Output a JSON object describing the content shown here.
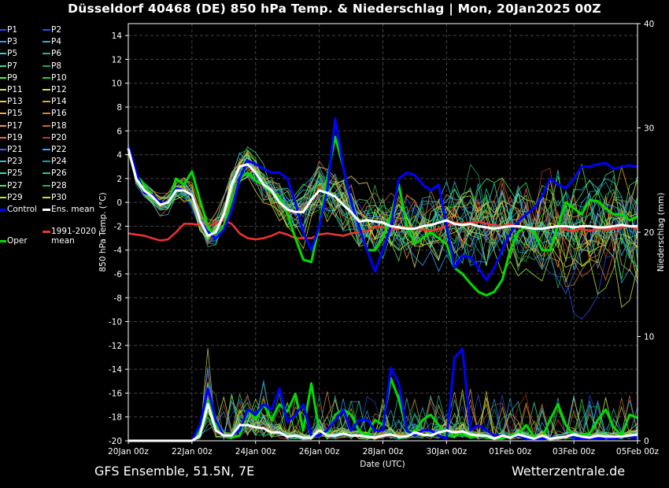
{
  "title": "Düsseldorf 40468 (DE)  850 hPa Temp. & Niederschlag | Mon, 20Jan2025 00Z",
  "footer_left": "GFS Ensemble, 51.5N, 7E",
  "footer_right": "Wetterzentrale.de",
  "legend": [
    {
      "label": "P1",
      "color": "#3344ff"
    },
    {
      "label": "P2",
      "color": "#2255ee"
    },
    {
      "label": "P3",
      "color": "#3399ff"
    },
    {
      "label": "P4",
      "color": "#33aadd"
    },
    {
      "label": "P5",
      "color": "#33cccc"
    },
    {
      "label": "P6",
      "color": "#22bb88"
    },
    {
      "label": "P7",
      "color": "#33dd99"
    },
    {
      "label": "P8",
      "color": "#22aa55"
    },
    {
      "label": "P9",
      "color": "#55ee44"
    },
    {
      "label": "P10",
      "color": "#33cc33"
    },
    {
      "label": "P11",
      "color": "#ccee44"
    },
    {
      "label": "P12",
      "color": "#dddd66"
    },
    {
      "label": "P13",
      "color": "#eecc33"
    },
    {
      "label": "P14",
      "color": "#ddaa22"
    },
    {
      "label": "P15",
      "color": "#eeaa55"
    },
    {
      "label": "P16",
      "color": "#cc8833"
    },
    {
      "label": "P17",
      "color": "#ee9944"
    },
    {
      "label": "P18",
      "color": "#cc6633"
    },
    {
      "label": "P19",
      "color": "#ee6655"
    },
    {
      "label": "P20",
      "color": "#bb3333"
    },
    {
      "label": "P21",
      "color": "#3366ff"
    },
    {
      "label": "P22",
      "color": "#33aaff"
    },
    {
      "label": "P23",
      "color": "#44bbcc"
    },
    {
      "label": "P24",
      "color": "#2299aa"
    },
    {
      "label": "P25",
      "color": "#33ddaa"
    },
    {
      "label": "P26",
      "color": "#22cc99"
    },
    {
      "label": "P27",
      "color": "#44ee66"
    },
    {
      "label": "P28",
      "color": "#22bb44"
    },
    {
      "label": "P29",
      "color": "#aaee33"
    },
    {
      "label": "P30",
      "color": "#dddd22"
    },
    {
      "label": "Control",
      "color": "#0000ff"
    },
    {
      "label": "Ens. mean",
      "color": "#ffffff"
    },
    {
      "label": "Oper",
      "color": "#00dd00"
    },
    {
      "label": "1991-2020 mean",
      "color": "#ee3333"
    }
  ],
  "chart_data": {
    "type": "line",
    "x_ticks": [
      "20Jan 00z",
      "22Jan 00z",
      "24Jan 00z",
      "26Jan 00z",
      "28Jan 00z",
      "30Jan 00z",
      "01Feb 00z",
      "03Feb 00z",
      "05Feb 00z"
    ],
    "xlabel": "Date (UTC)",
    "ylabel_left": "850 hPa Temp. (°C)",
    "ylabel_right": "Niederschlag (mm)",
    "y_left_range": [
      -20,
      15
    ],
    "y_left_ticks": [
      14,
      12,
      10,
      8,
      6,
      4,
      2,
      0,
      -2,
      -4,
      -6,
      -8,
      -10,
      -12,
      -14,
      -16,
      -18,
      -20
    ],
    "y_right_range": [
      0,
      40
    ],
    "y_right_ticks": [
      40,
      30,
      20,
      10,
      0
    ],
    "grid": true,
    "x_days": [
      0,
      0.25,
      0.5,
      0.75,
      1,
      1.25,
      1.5,
      1.75,
      2,
      2.25,
      2.5,
      2.75,
      3,
      3.25,
      3.5,
      3.75,
      4,
      4.25,
      4.5,
      4.75,
      5,
      5.25,
      5.5,
      5.75,
      6,
      6.25,
      6.5,
      6.75,
      7,
      7.25,
      7.5,
      7.75,
      8,
      8.25,
      8.5,
      8.75,
      9,
      9.25,
      9.5,
      9.75,
      10,
      10.25,
      10.5,
      10.75,
      11,
      11.25,
      11.5,
      11.75,
      12,
      12.25,
      12.5,
      12.75,
      13,
      13.25,
      13.5,
      13.75,
      14,
      14.25,
      14.5,
      14.75,
      15,
      15.25,
      15.5,
      15.75,
      16
    ],
    "series": [
      {
        "name": "Ens. mean",
        "color": "#ffffff",
        "values": [
          4.5,
          2,
          1,
          0.5,
          -0.2,
          0,
          1,
          1,
          0.6,
          -1.5,
          -2.8,
          -2.5,
          -1,
          1.5,
          3,
          3.2,
          2.5,
          1.5,
          1,
          0,
          -0.6,
          -0.8,
          -0.8,
          0.2,
          1,
          0.8,
          0.5,
          -0.2,
          -0.8,
          -1.6,
          -1.5,
          -1.6,
          -1.7,
          -2,
          -2.1,
          -2.2,
          -2.2,
          -2.0,
          -1.9,
          -1.7,
          -1.5,
          -1.8,
          -1.9,
          -1.8,
          -2.0,
          -2.1,
          -2.2,
          -2.1,
          -2.0,
          -2.0,
          -2.1,
          -2.2,
          -2.2,
          -2.1,
          -2.0,
          -2.0,
          -2.1,
          -2.0,
          -2.0,
          -2.1,
          -2.1,
          -2.0,
          -1.9,
          -2.0,
          -2.0
        ]
      },
      {
        "name": "Control",
        "color": "#0000ff",
        "values": [
          4.8,
          2.5,
          0.8,
          0.6,
          0,
          0,
          1.2,
          1,
          0.5,
          -1.5,
          -2.5,
          -3,
          -2.3,
          -0.6,
          2,
          3.5,
          3.2,
          2.8,
          2.5,
          2.5,
          2,
          0,
          -2.5,
          -4,
          -2,
          1,
          7,
          3,
          0,
          -2,
          -4,
          -5.8,
          -4,
          -2,
          2,
          2.5,
          2.3,
          1.5,
          1,
          1.5,
          -2,
          -5.5,
          -4.5,
          -4.6,
          -5.5,
          -6.5,
          -5.5,
          -4,
          -2.6,
          -1.6,
          -1,
          -0.5,
          0.5,
          2,
          1.5,
          1.2,
          2,
          3,
          3,
          3.2,
          3.3,
          2.8,
          3,
          3.1,
          3
        ]
      },
      {
        "name": "Oper",
        "color": "#00dd00",
        "values": [
          4.6,
          2.3,
          1.5,
          0.5,
          0,
          0,
          2,
          1.5,
          2.6,
          0.2,
          -2,
          -3,
          -2,
          0.2,
          2,
          2.5,
          1.8,
          1.5,
          0.8,
          0.5,
          -1,
          -3,
          -4.8,
          -5,
          -2,
          2,
          5.5,
          3,
          0,
          -2,
          -4,
          -4,
          -3,
          -1,
          1.5,
          -2,
          -3.5,
          -3,
          -2.5,
          -3,
          -3.5,
          -5.5,
          -6,
          -6.8,
          -7.5,
          -7.8,
          -7.5,
          -6.5,
          -4,
          -2.5,
          -2,
          -2.5,
          -4,
          -4,
          -2,
          0,
          -0.5,
          -1,
          0.2,
          0.1,
          -0.5,
          -1,
          -1,
          -1.5,
          -1.2
        ]
      },
      {
        "name": "1991-2020 mean",
        "color": "#ee3333",
        "values": [
          -2.6,
          -2.7,
          -2.8,
          -3,
          -3.2,
          -3.1,
          -2.5,
          -1.8,
          -1.8,
          -1.9,
          -2.0,
          -1.7,
          -1.5,
          -1.8,
          -2.6,
          -3.0,
          -3.1,
          -3.0,
          -2.8,
          -2.5,
          -2.7,
          -3.0,
          -3.0,
          -3.0,
          -2.7,
          -2.6,
          -2.7,
          -2.8,
          -2.6,
          -2.5,
          -2.4,
          -2.0,
          -2.1,
          -2.3,
          -2.2,
          -2.0,
          -2.2,
          -2.3,
          -2.4,
          -2.2,
          -2.0,
          -1.7,
          -1.8,
          -1.7,
          -1.6,
          -1.8,
          -1.9,
          -2.0,
          -1.8,
          -2.0,
          -2.1,
          -2.2,
          -2.2,
          -2.1,
          -2.0,
          -2.3,
          -2.4,
          -2.2,
          -2.4,
          -2.2,
          -2.3,
          -2.2,
          -2.1,
          -2.0,
          -2.2
        ]
      }
    ],
    "precip_series": [
      {
        "name": "Ens. mean",
        "color": "#ffffff",
        "values": [
          0,
          0,
          0,
          0,
          0,
          0,
          0,
          0,
          0,
          0.5,
          3.5,
          1,
          0.5,
          0.5,
          1.5,
          1.5,
          1.3,
          1.2,
          0.8,
          0.8,
          0.4,
          0.5,
          0.3,
          0.3,
          1,
          0.5,
          0.5,
          0.7,
          0.5,
          0.5,
          0.4,
          0.3,
          0.5,
          0.6,
          0.4,
          0.4,
          0.8,
          0.6,
          0.5,
          0.8,
          1,
          0.8,
          0.9,
          0.6,
          0.5,
          0.5,
          0.2,
          0.5,
          0.3,
          0.6,
          0.4,
          0.2,
          0.5,
          0.2,
          0.3,
          0.4,
          0.6,
          0.4,
          0.3,
          0.5,
          0.4,
          0.4,
          0.4,
          0.5,
          0.6
        ]
      },
      {
        "name": "Control",
        "color": "#0000ff",
        "values": [
          0,
          0,
          0,
          0,
          0,
          0,
          0,
          0,
          0,
          1.5,
          5,
          2,
          0.5,
          0.5,
          1,
          3,
          2.5,
          3.5,
          3,
          5,
          1.8,
          2.5,
          3.5,
          0.5,
          0.5,
          1,
          2,
          3,
          1,
          2,
          2,
          1,
          1,
          7,
          5.5,
          1,
          0.5,
          1,
          1,
          0.5,
          0.2,
          8,
          8.8,
          1,
          1.5,
          1,
          0.5,
          0.5,
          0.3,
          0.5,
          0.2,
          0.1,
          0.2,
          0.3,
          0.3,
          0.5,
          0.3,
          0.2,
          0.2,
          0.2,
          0.3,
          0.2,
          0.4,
          0.4,
          0.3
        ]
      },
      {
        "name": "Oper",
        "color": "#00dd00",
        "values": [
          0,
          0,
          0,
          0,
          0,
          0,
          0,
          0,
          0,
          1,
          3.8,
          1.5,
          0.5,
          0.3,
          0.5,
          3,
          2,
          3.5,
          2,
          3.5,
          2.8,
          4.5,
          1,
          5.5,
          1,
          0.5,
          2.5,
          3,
          2.5,
          1,
          0.5,
          2,
          1.5,
          6,
          4,
          1,
          0.8,
          2,
          2.5,
          1.5,
          0.5,
          0.5,
          0.7,
          0.3,
          0.5,
          0.3,
          0.2,
          0.2,
          0.5,
          0.6,
          1.5,
          0.4,
          0.3,
          2,
          3.5,
          1.5,
          0.5,
          0.6,
          0.7,
          2,
          3,
          1.3,
          0.5,
          2.5,
          2.2
        ]
      }
    ]
  }
}
